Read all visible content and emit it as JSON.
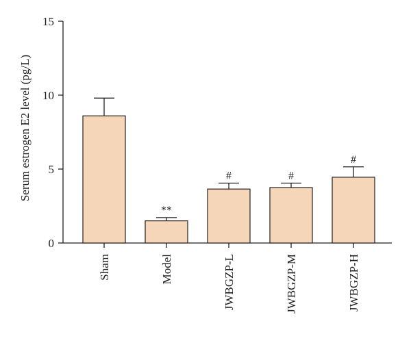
{
  "chart_data": {
    "type": "bar",
    "title": "",
    "xlabel": "",
    "ylabel": "Serum estrogen E2 level (pg/L)",
    "ylim": [
      0,
      15
    ],
    "yticks": [
      0,
      5,
      10,
      15
    ],
    "categories": [
      "Sham",
      "Model",
      "JWBGZP-L",
      "JWBGZP-M",
      "JWBGZP-H"
    ],
    "values": [
      8.6,
      1.5,
      3.65,
      3.75,
      4.45
    ],
    "error_upper": [
      9.8,
      1.72,
      4.05,
      4.05,
      5.15
    ],
    "annotations": [
      "",
      "**",
      "#",
      "#",
      "#"
    ],
    "bar_color": "#f6d6b8",
    "grid": false,
    "legend": "none"
  }
}
